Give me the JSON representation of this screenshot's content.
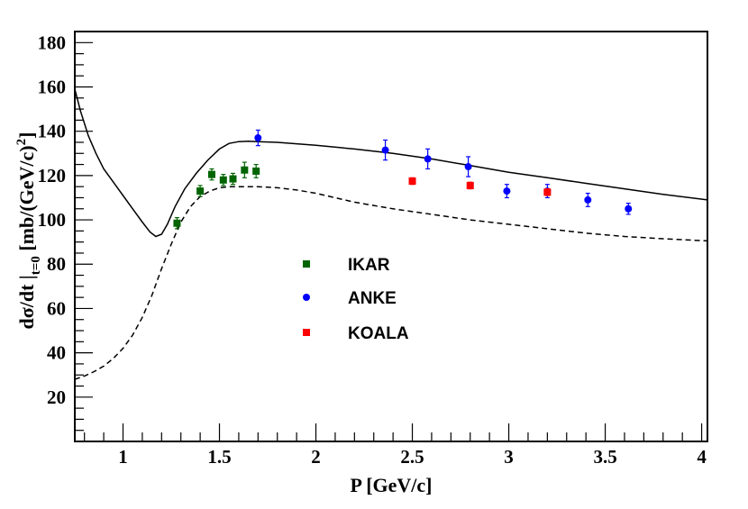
{
  "chart_data": {
    "type": "scatter",
    "title": "",
    "xlabel": "P [GeV/c]",
    "ylabel": {
      "main": "dσ/dt |",
      "sub": "t=0",
      "units": " [mb/(GeV/c)",
      "sup": "2",
      "close": "]"
    },
    "xlim": [
      0.75,
      4.03
    ],
    "ylim": [
      0,
      185
    ],
    "xticks": [
      1,
      1.5,
      2,
      2.5,
      3,
      3.5,
      4
    ],
    "xtick_labels": [
      "1",
      "1.5",
      "2",
      "2.5",
      "3",
      "3.5",
      "4"
    ],
    "yticks": [
      20,
      40,
      60,
      80,
      100,
      120,
      140,
      160,
      180
    ],
    "ytick_labels": [
      "20",
      "40",
      "60",
      "80",
      "100",
      "120",
      "140",
      "160",
      "180"
    ],
    "legend": {
      "position": "center",
      "entries": [
        "IKAR",
        "ANKE",
        "KOALA"
      ]
    },
    "series": [
      {
        "name": "IKAR",
        "marker": "square",
        "color": "#006400",
        "x": [
          1.28,
          1.4,
          1.46,
          1.52,
          1.57,
          1.63,
          1.69
        ],
        "y": [
          98.5,
          113,
          120.5,
          118,
          118.5,
          122.5,
          122
        ],
        "err": [
          2.5,
          2.5,
          2.5,
          2.5,
          2.5,
          3.5,
          3
        ]
      },
      {
        "name": "ANKE",
        "marker": "circle",
        "color": "#0000ff",
        "x": [
          1.7,
          2.36,
          2.58,
          2.79,
          2.99,
          3.2,
          3.41,
          3.62
        ],
        "y": [
          137,
          131.5,
          127.5,
          124,
          113,
          113,
          109,
          105
        ],
        "err": [
          3.5,
          4.5,
          4.5,
          4.5,
          3,
          3,
          3,
          2.5
        ]
      },
      {
        "name": "KOALA",
        "marker": "square",
        "color": "#ff0000",
        "x": [
          2.5,
          2.8,
          3.2
        ],
        "y": [
          117.5,
          115.5,
          112.5
        ],
        "err": [
          1.5,
          1.5,
          1.5
        ]
      }
    ],
    "curves": [
      {
        "name": "solid",
        "style": "solid",
        "x": [
          0.75,
          0.78,
          0.82,
          0.86,
          0.9,
          0.95,
          1.0,
          1.05,
          1.1,
          1.14,
          1.17,
          1.2,
          1.23,
          1.27,
          1.32,
          1.38,
          1.44,
          1.5,
          1.55,
          1.6,
          1.65,
          1.7,
          1.8,
          2.0,
          2.2,
          2.4,
          2.6,
          2.8,
          3.0,
          3.2,
          3.4,
          3.6,
          3.8,
          4.03
        ],
        "y": [
          159,
          149,
          138,
          130,
          123,
          117,
          111,
          105,
          99,
          94.5,
          92.5,
          93.5,
          98,
          106,
          114,
          121,
          127,
          132,
          134.5,
          135.3,
          135.5,
          135.3,
          135,
          133.7,
          132,
          130,
          127.5,
          124.5,
          121.5,
          119,
          116.5,
          114,
          111.5,
          109
        ]
      },
      {
        "name": "dashed",
        "style": "dashed",
        "x": [
          0.75,
          0.8,
          0.85,
          0.9,
          0.95,
          1.0,
          1.05,
          1.1,
          1.15,
          1.2,
          1.25,
          1.3,
          1.35,
          1.4,
          1.45,
          1.5,
          1.55,
          1.6,
          1.7,
          1.8,
          1.9,
          2.0,
          2.1,
          2.2,
          2.3,
          2.4,
          2.6,
          2.8,
          3.0,
          3.2,
          3.4,
          3.6,
          3.8,
          4.03
        ],
        "y": [
          28,
          29.5,
          31.5,
          34,
          37.5,
          42,
          48,
          56,
          66,
          78,
          89,
          99,
          106,
          110.5,
          113,
          114.5,
          115,
          115,
          115,
          114.5,
          113.5,
          112,
          110,
          108,
          106.5,
          105,
          102.5,
          100,
          98,
          96,
          94,
          92.5,
          91.5,
          90.5
        ]
      }
    ]
  }
}
